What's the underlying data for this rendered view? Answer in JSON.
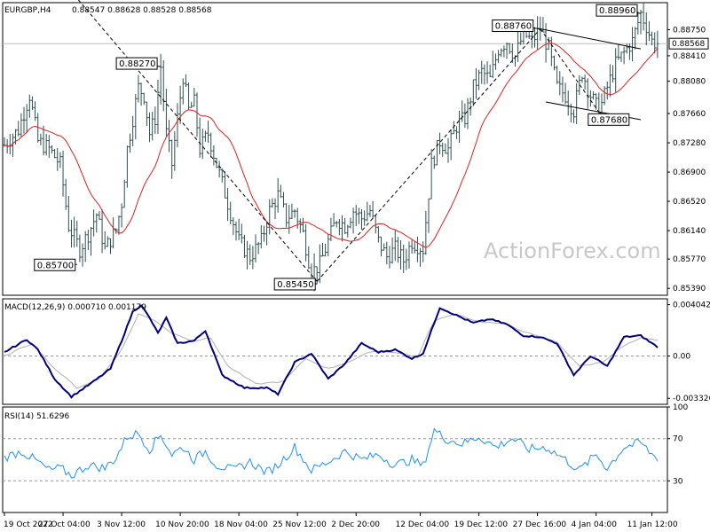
{
  "chart_data": {
    "type": "ohlc",
    "symbol_header": "EURGBP,H4",
    "ohlc_readout": "0.88547 0.88628 0.88528 0.88568",
    "watermark": "ActionForex.com",
    "colors": {
      "bars": "#2f4f4f",
      "ma": "#e02020",
      "macd": "#000080",
      "signal": "#b0b0b0",
      "rsi": "#1e90ff",
      "price_label_bg": "#ffffff",
      "frame": "#000000"
    },
    "price_axis": {
      "ticks": [
        "0.88750",
        "0.88410",
        "0.88080",
        "0.87660",
        "0.87280",
        "0.86900",
        "0.86520",
        "0.86140",
        "0.85770",
        "0.85390"
      ],
      "range": [
        0.853,
        0.891
      ]
    },
    "current_price_label": "0.88568",
    "current_price": 0.88568,
    "time_labels": [
      "19 Oct 2022",
      "27 Oct 04:00",
      "3 Nov 12:00",
      "10 Nov 20:00",
      "18 Nov 04:00",
      "25 Nov 12:00",
      "2 Dec 20:00",
      "12 Dec 04:00",
      "19 Dec 12:00",
      "27 Dec 16:00",
      "4 Jan 04:00",
      "11 Jan 12:00"
    ],
    "annotations": [
      {
        "label": "0.88270",
        "price": 0.8827
      },
      {
        "label": "0.85700",
        "price": 0.857
      },
      {
        "label": "0.85450",
        "price": 0.8545
      },
      {
        "label": "0.88760",
        "price": 0.8876
      },
      {
        "label": "0.87680",
        "price": 0.8768
      },
      {
        "label": "0.88960",
        "price": 0.8896
      }
    ],
    "price_path": [
      [
        0,
        0.8725
      ],
      [
        5,
        0.8745
      ],
      [
        9,
        0.879
      ],
      [
        12,
        0.873
      ],
      [
        16,
        0.872
      ],
      [
        20,
        0.87
      ],
      [
        23,
        0.862
      ],
      [
        27,
        0.859
      ],
      [
        30,
        0.861
      ],
      [
        33,
        0.8635
      ],
      [
        36,
        0.859
      ],
      [
        40,
        0.8615
      ],
      [
        42,
        0.865
      ],
      [
        44,
        0.872
      ],
      [
        46,
        0.876
      ],
      [
        48,
        0.88
      ],
      [
        50,
        0.879
      ],
      [
        52,
        0.874
      ],
      [
        54,
        0.876
      ],
      [
        56,
        0.8827
      ],
      [
        58,
        0.874
      ],
      [
        60,
        0.87
      ],
      [
        62,
        0.876
      ],
      [
        64,
        0.8815
      ],
      [
        66,
        0.877
      ],
      [
        68,
        0.878
      ],
      [
        70,
        0.872
      ],
      [
        73,
        0.874
      ],
      [
        76,
        0.87
      ],
      [
        80,
        0.865
      ],
      [
        84,
        0.86
      ],
      [
        88,
        0.858
      ],
      [
        92,
        0.86
      ],
      [
        95,
        0.864
      ],
      [
        98,
        0.866
      ],
      [
        101,
        0.863
      ],
      [
        104,
        0.864
      ],
      [
        107,
        0.861
      ],
      [
        110,
        0.856
      ],
      [
        113,
        0.857
      ],
      [
        116,
        0.86
      ],
      [
        119,
        0.863
      ],
      [
        122,
        0.862
      ],
      [
        125,
        0.864
      ],
      [
        128,
        0.863
      ],
      [
        131,
        0.864
      ],
      [
        134,
        0.86
      ],
      [
        137,
        0.858
      ],
      [
        140,
        0.859
      ],
      [
        143,
        0.8575
      ],
      [
        146,
        0.86
      ],
      [
        150,
        0.859
      ],
      [
        153,
        0.87
      ],
      [
        156,
        0.873
      ],
      [
        159,
        0.872
      ],
      [
        162,
        0.875
      ],
      [
        165,
        0.876
      ],
      [
        168,
        0.88
      ],
      [
        171,
        0.882
      ],
      [
        174,
        0.881
      ],
      [
        177,
        0.885
      ],
      [
        180,
        0.886
      ],
      [
        183,
        0.884
      ],
      [
        186,
        0.887
      ],
      [
        189,
        0.886
      ],
      [
        192,
        0.8876
      ],
      [
        195,
        0.885
      ],
      [
        198,
        0.88
      ],
      [
        201,
        0.879
      ],
      [
        204,
        0.877
      ],
      [
        207,
        0.882
      ],
      [
        210,
        0.879
      ],
      [
        213,
        0.8768
      ],
      [
        216,
        0.88
      ],
      [
        219,
        0.883
      ],
      [
        222,
        0.8845
      ],
      [
        225,
        0.886
      ],
      [
        228,
        0.8896
      ],
      [
        230,
        0.888
      ],
      [
        232,
        0.886
      ],
      [
        234,
        0.8857
      ]
    ],
    "trendlines": [
      {
        "from": [
          25,
          0.892
        ],
        "to": [
          112,
          0.8548
        ],
        "style": "dashed"
      },
      {
        "from": [
          112,
          0.8548
        ],
        "to": [
          192,
          0.8876
        ],
        "style": "dashed"
      },
      {
        "from": [
          192,
          0.8876
        ],
        "to": [
          213,
          0.8768
        ],
        "style": "dashed"
      },
      {
        "from": [
          192,
          0.8876
        ],
        "to": [
          228,
          0.885
        ],
        "style": "solid"
      },
      {
        "from": [
          194,
          0.8781
        ],
        "to": [
          228,
          0.8758
        ],
        "style": "solid"
      }
    ],
    "macd": {
      "header": "MACD(12,26,9) 0.000710 0.001179",
      "ticks": [
        "0.004042",
        "0.00",
        "-0.003326"
      ],
      "range": [
        -0.0038,
        0.0045
      ],
      "values": [
        [
          0,
          0.0003
        ],
        [
          8,
          0.0013
        ],
        [
          12,
          0.0005
        ],
        [
          18,
          -0.0018
        ],
        [
          24,
          -0.0032
        ],
        [
          32,
          -0.002
        ],
        [
          38,
          -0.001
        ],
        [
          42,
          0.0012
        ],
        [
          46,
          0.0035
        ],
        [
          49,
          0.004
        ],
        [
          52,
          0.003
        ],
        [
          55,
          0.0018
        ],
        [
          58,
          0.003
        ],
        [
          62,
          0.001
        ],
        [
          68,
          0.0012
        ],
        [
          72,
          0.002
        ],
        [
          78,
          -0.0015
        ],
        [
          86,
          -0.0025
        ],
        [
          94,
          -0.0025
        ],
        [
          98,
          -0.003
        ],
        [
          104,
          -0.0005
        ],
        [
          110,
          0.0002
        ],
        [
          116,
          -0.0018
        ],
        [
          122,
          -0.0006
        ],
        [
          128,
          0.001
        ],
        [
          134,
          0.0003
        ],
        [
          140,
          0.0005
        ],
        [
          146,
          -0.0002
        ],
        [
          150,
          0.0002
        ],
        [
          156,
          0.0038
        ],
        [
          162,
          0.0032
        ],
        [
          168,
          0.0026
        ],
        [
          174,
          0.0029
        ],
        [
          180,
          0.0025
        ],
        [
          186,
          0.0016
        ],
        [
          192,
          0.0015
        ],
        [
          198,
          0.001
        ],
        [
          204,
          -0.0015
        ],
        [
          210,
          0.0
        ],
        [
          216,
          -0.0008
        ],
        [
          222,
          0.0015
        ],
        [
          228,
          0.0016
        ],
        [
          234,
          0.0007
        ]
      ],
      "signal": [
        [
          0,
          0.0
        ],
        [
          10,
          0.001
        ],
        [
          18,
          -0.001
        ],
        [
          26,
          -0.0025
        ],
        [
          34,
          -0.0018
        ],
        [
          42,
          0.0005
        ],
        [
          48,
          0.0033
        ],
        [
          54,
          0.0028
        ],
        [
          60,
          0.0018
        ],
        [
          68,
          0.0012
        ],
        [
          74,
          0.0014
        ],
        [
          80,
          -0.0008
        ],
        [
          90,
          -0.0022
        ],
        [
          100,
          -0.002
        ],
        [
          108,
          -0.0002
        ],
        [
          116,
          -0.001
        ],
        [
          124,
          -0.0004
        ],
        [
          132,
          0.0004
        ],
        [
          140,
          0.0003
        ],
        [
          148,
          -0.0001
        ],
        [
          154,
          0.0028
        ],
        [
          162,
          0.0033
        ],
        [
          170,
          0.0027
        ],
        [
          180,
          0.0025
        ],
        [
          190,
          0.0016
        ],
        [
          198,
          0.0011
        ],
        [
          206,
          -0.0008
        ],
        [
          214,
          -0.0005
        ],
        [
          222,
          0.0008
        ],
        [
          228,
          0.0014
        ],
        [
          234,
          0.0012
        ]
      ]
    },
    "rsi": {
      "header": "RSI(14) 51.6296",
      "ticks": [
        "100",
        "70",
        "30"
      ],
      "levels": [
        70,
        30
      ],
      "range": [
        0,
        100
      ],
      "values": [
        [
          0,
          52
        ],
        [
          6,
          58
        ],
        [
          12,
          48
        ],
        [
          16,
          40
        ],
        [
          20,
          42
        ],
        [
          24,
          35
        ],
        [
          30,
          45
        ],
        [
          36,
          42
        ],
        [
          40,
          52
        ],
        [
          44,
          72
        ],
        [
          48,
          75
        ],
        [
          52,
          60
        ],
        [
          56,
          74
        ],
        [
          60,
          55
        ],
        [
          64,
          62
        ],
        [
          68,
          50
        ],
        [
          72,
          58
        ],
        [
          76,
          45
        ],
        [
          82,
          40
        ],
        [
          88,
          48
        ],
        [
          94,
          38
        ],
        [
          98,
          45
        ],
        [
          104,
          62
        ],
        [
          110,
          40
        ],
        [
          116,
          48
        ],
        [
          122,
          58
        ],
        [
          128,
          50
        ],
        [
          134,
          55
        ],
        [
          140,
          45
        ],
        [
          146,
          50
        ],
        [
          150,
          44
        ],
        [
          154,
          78
        ],
        [
          158,
          70
        ],
        [
          164,
          65
        ],
        [
          170,
          72
        ],
        [
          176,
          62
        ],
        [
          182,
          70
        ],
        [
          188,
          60
        ],
        [
          194,
          62
        ],
        [
          200,
          52
        ],
        [
          206,
          40
        ],
        [
          212,
          55
        ],
        [
          216,
          42
        ],
        [
          222,
          62
        ],
        [
          228,
          66
        ],
        [
          232,
          55
        ],
        [
          234,
          52
        ]
      ]
    }
  }
}
